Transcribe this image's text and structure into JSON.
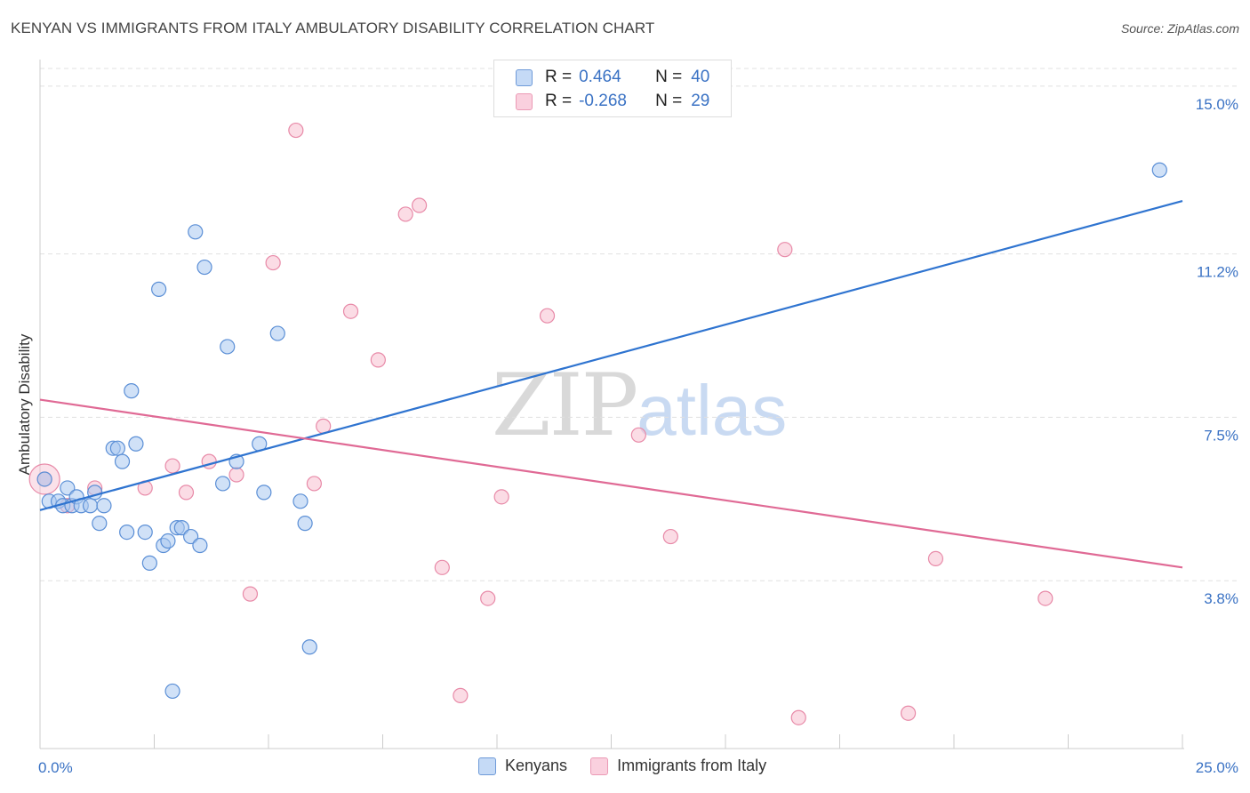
{
  "title": "KENYAN VS IMMIGRANTS FROM ITALY AMBULATORY DISABILITY CORRELATION CHART",
  "source": "Source: ZipAtlas.com",
  "watermark": {
    "zip": "ZIP",
    "atlas": "atlas"
  },
  "colors": {
    "blue_fill": "#a9c8f0",
    "blue_stroke": "#5b8fd6",
    "blue_line": "#2f74d0",
    "pink_fill": "#f7bfd0",
    "pink_stroke": "#e88aa8",
    "pink_line": "#e06a95",
    "value_text": "#3a72c4",
    "grid": "#e0e0e0"
  },
  "legend": {
    "rows": [
      {
        "r_label": "R =",
        "r_value": "0.464",
        "n_label": "N =",
        "n_value": "40",
        "color": "blue"
      },
      {
        "r_label": "R =",
        "r_value": "-0.268",
        "n_label": "N =",
        "n_value": "29",
        "color": "pink"
      }
    ]
  },
  "bottom_legend": [
    {
      "label": "Kenyans",
      "color": "blue"
    },
    {
      "label": "Immigrants from Italy",
      "color": "pink"
    }
  ],
  "chart_data": {
    "type": "scatter",
    "title": "KENYAN VS IMMIGRANTS FROM ITALY AMBULATORY DISABILITY CORRELATION CHART",
    "xlabel": "",
    "ylabel": "Ambulatory Disability",
    "xlim": [
      0,
      25
    ],
    "ylim": [
      0,
      15.4
    ],
    "x_tick_labels": [
      {
        "value": 0,
        "label": "0.0%"
      },
      {
        "value": 25,
        "label": "25.0%"
      }
    ],
    "y_tick_labels": [
      {
        "value": 15.0,
        "label": "15.0%"
      },
      {
        "value": 11.2,
        "label": "11.2%"
      },
      {
        "value": 7.5,
        "label": "7.5%"
      },
      {
        "value": 3.8,
        "label": "3.8%"
      }
    ],
    "series": [
      {
        "name": "Kenyans",
        "color": "blue",
        "r": 0.464,
        "n": 40,
        "trend": {
          "x0": 0,
          "y0": 5.4,
          "x1": 25,
          "y1": 12.4
        },
        "points": [
          [
            0.1,
            6.1
          ],
          [
            0.2,
            5.6
          ],
          [
            0.4,
            5.6
          ],
          [
            0.5,
            5.5
          ],
          [
            0.6,
            5.9
          ],
          [
            0.7,
            5.5
          ],
          [
            0.8,
            5.7
          ],
          [
            0.9,
            5.5
          ],
          [
            1.1,
            5.5
          ],
          [
            1.2,
            5.8
          ],
          [
            1.3,
            5.1
          ],
          [
            1.4,
            5.5
          ],
          [
            1.6,
            6.8
          ],
          [
            1.7,
            6.8
          ],
          [
            1.8,
            6.5
          ],
          [
            1.9,
            4.9
          ],
          [
            2.0,
            8.1
          ],
          [
            2.1,
            6.9
          ],
          [
            2.3,
            4.9
          ],
          [
            2.4,
            4.2
          ],
          [
            2.6,
            10.4
          ],
          [
            2.7,
            4.6
          ],
          [
            2.8,
            4.7
          ],
          [
            2.9,
            1.3
          ],
          [
            3.0,
            5.0
          ],
          [
            3.1,
            5.0
          ],
          [
            3.3,
            4.8
          ],
          [
            3.4,
            11.7
          ],
          [
            3.5,
            4.6
          ],
          [
            3.6,
            10.9
          ],
          [
            4.0,
            6.0
          ],
          [
            4.1,
            9.1
          ],
          [
            4.3,
            6.5
          ],
          [
            4.8,
            6.9
          ],
          [
            4.9,
            5.8
          ],
          [
            5.2,
            9.4
          ],
          [
            5.7,
            5.6
          ],
          [
            5.8,
            5.1
          ],
          [
            5.9,
            2.3
          ],
          [
            24.5,
            13.1
          ]
        ]
      },
      {
        "name": "Immigrants from Italy",
        "color": "pink",
        "r": -0.268,
        "n": 29,
        "trend": {
          "x0": 0,
          "y0": 7.9,
          "x1": 25,
          "y1": 4.1
        },
        "points": [
          [
            0.1,
            6.1
          ],
          [
            0.6,
            5.5
          ],
          [
            1.2,
            5.9
          ],
          [
            2.3,
            5.9
          ],
          [
            2.9,
            6.4
          ],
          [
            3.2,
            5.8
          ],
          [
            3.7,
            6.5
          ],
          [
            4.3,
            6.2
          ],
          [
            4.6,
            3.5
          ],
          [
            5.1,
            11.0
          ],
          [
            5.6,
            14.0
          ],
          [
            6.2,
            7.3
          ],
          [
            6.8,
            9.9
          ],
          [
            7.4,
            8.8
          ],
          [
            8.0,
            12.1
          ],
          [
            8.3,
            12.3
          ],
          [
            8.8,
            4.1
          ],
          [
            9.2,
            1.2
          ],
          [
            9.8,
            3.4
          ],
          [
            10.1,
            5.7
          ],
          [
            11.1,
            9.8
          ],
          [
            13.1,
            7.1
          ],
          [
            13.8,
            4.8
          ],
          [
            16.3,
            11.3
          ],
          [
            16.6,
            0.7
          ],
          [
            19.0,
            0.8
          ],
          [
            19.6,
            4.3
          ],
          [
            22.0,
            3.4
          ],
          [
            6.0,
            6.0
          ]
        ]
      }
    ]
  }
}
